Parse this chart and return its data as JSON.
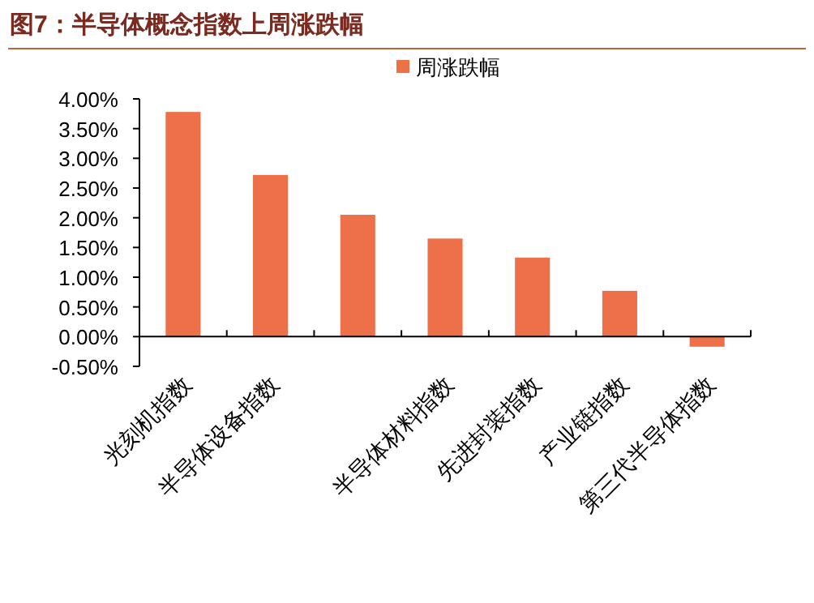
{
  "chart_data": {
    "type": "bar",
    "title": "图7：半导体概念指数上周涨跌幅",
    "categories": [
      "光刻机指数",
      "半导体设备指数",
      null,
      "半导体材料指数",
      "先进封装指数",
      "产业链指数",
      "第三代半导体指数"
    ],
    "series": [
      {
        "name": "周涨跌幅",
        "color": "#ee7049",
        "values": [
          3.78,
          2.72,
          2.05,
          1.65,
          1.33,
          0.77,
          -0.17
        ]
      }
    ],
    "ylim": [
      -0.5,
      4.0
    ],
    "yticks": [
      {
        "value": -0.5,
        "label": "-0.50%"
      },
      {
        "value": 0,
        "label": "0.00%"
      },
      {
        "value": 0.5,
        "label": "0.50%"
      },
      {
        "value": 1.0,
        "label": "1.00%"
      },
      {
        "value": 1.5,
        "label": "1.50%"
      },
      {
        "value": 2.0,
        "label": "2.00%"
      },
      {
        "value": 2.5,
        "label": "2.50%"
      },
      {
        "value": 3.0,
        "label": "3.00%"
      },
      {
        "value": 3.5,
        "label": "3.50%"
      },
      {
        "value": 4.0,
        "label": "4.00%"
      }
    ],
    "legend": "top",
    "grid": false
  }
}
